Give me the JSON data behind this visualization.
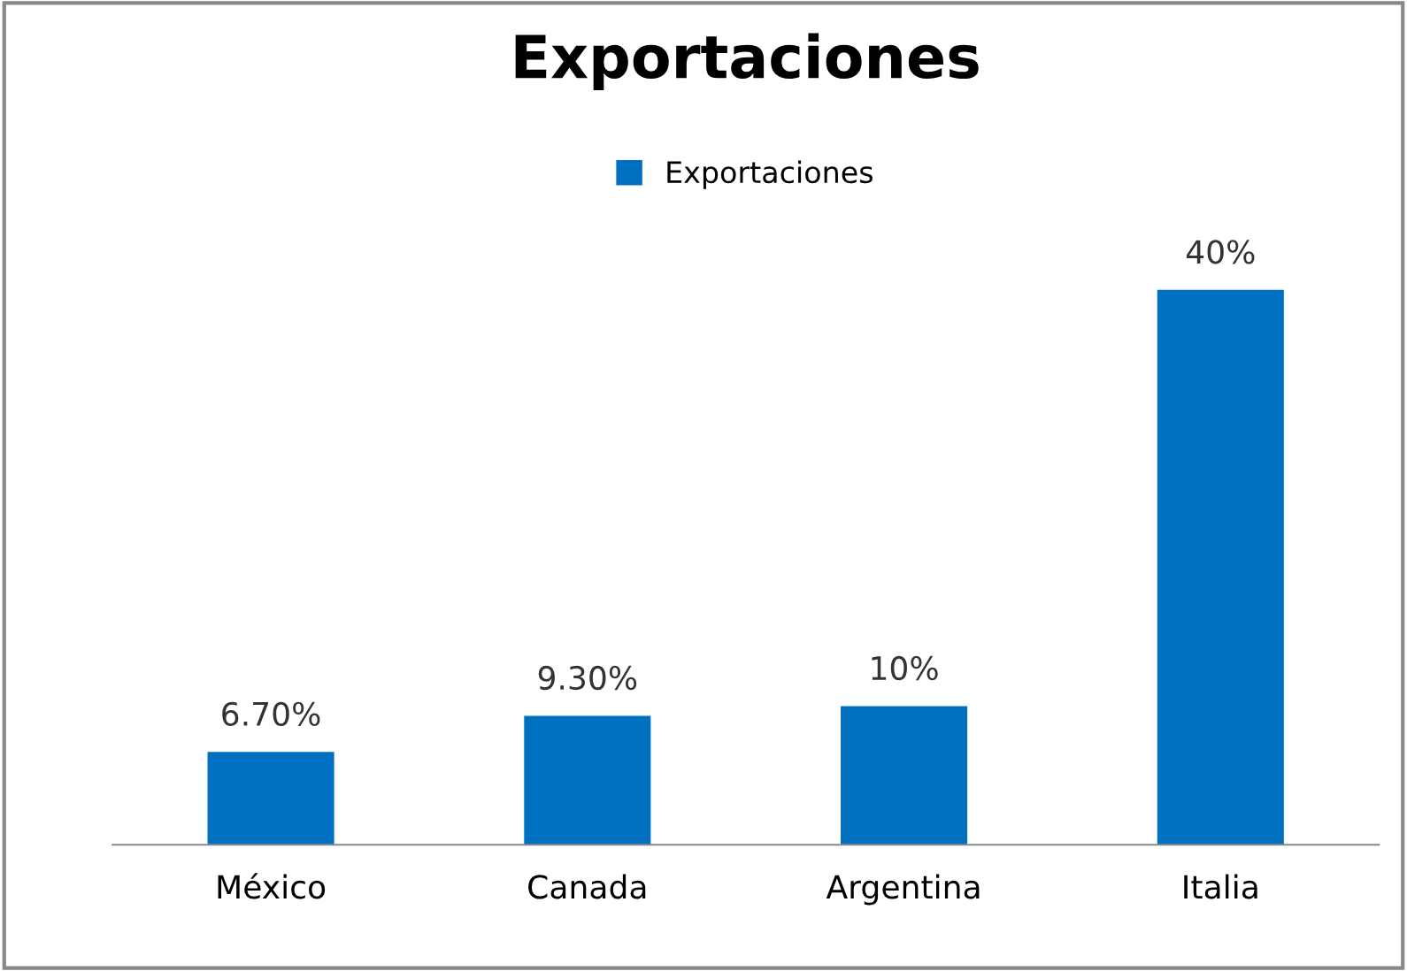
{
  "chart_data": {
    "type": "bar",
    "title": "Exportaciones",
    "categories": [
      "México",
      "Canada",
      "Argentina",
      "Italia"
    ],
    "series": [
      {
        "name": "Exportaciones",
        "color": "#0070c0",
        "values": [
          6.7,
          9.3,
          10,
          40
        ],
        "value_labels": [
          "6.70%",
          "9.30%",
          "10%",
          "40%"
        ]
      }
    ],
    "tick_labels": "x",
    "legend": "top",
    "grid": false
  }
}
